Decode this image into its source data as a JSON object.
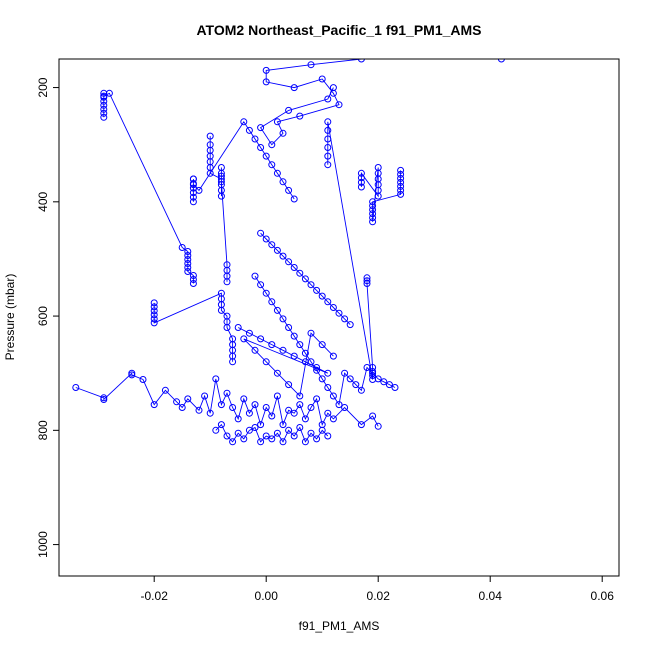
{
  "chart_data": {
    "type": "scatter",
    "title": "ATOM2 Northeast_Pacific_1 f91_PM1_AMS",
    "xlabel": "f91_PM1_AMS",
    "ylabel": "Pressure (mbar)",
    "xlim": [
      -0.037,
      0.063
    ],
    "ylim": [
      1055,
      150
    ],
    "y_reversed": true,
    "x_ticks": [
      -0.02,
      0.0,
      0.02,
      0.04,
      0.06
    ],
    "x_tick_labels": [
      "-0.02",
      "0.00",
      "0.02",
      "0.04",
      "0.06"
    ],
    "y_ticks": [
      200,
      400,
      600,
      800,
      1000
    ],
    "y_tick_labels": [
      "200",
      "400",
      "600",
      "800",
      "1000"
    ],
    "grid": false,
    "color": "#0000ff",
    "series": [
      {
        "x": [
          0.042,
          0.017,
          0.008,
          0.0,
          0.0,
          0.005,
          0.01,
          0.012,
          0.013,
          0.006,
          0.002,
          0.003,
          0.001,
          -0.001,
          0.004,
          0.011,
          0.012
        ],
        "y": [
          150,
          150,
          160,
          170,
          190,
          200,
          185,
          210,
          230,
          250,
          260,
          280,
          300,
          270,
          240,
          220,
          200
        ]
      },
      {
        "x": [
          -0.029,
          -0.029,
          -0.029,
          -0.029,
          -0.029,
          -0.029,
          -0.029,
          -0.029,
          -0.028,
          -0.015,
          -0.014,
          -0.014,
          -0.014,
          -0.014,
          -0.014,
          -0.014,
          -0.013,
          -0.013,
          -0.013
        ],
        "y": [
          210,
          217,
          224,
          231,
          238,
          245,
          252,
          215,
          210,
          480,
          487,
          494,
          501,
          508,
          515,
          522,
          529,
          536,
          543
        ]
      },
      {
        "x": [
          -0.01,
          -0.01,
          -0.01,
          -0.01,
          -0.01,
          -0.01,
          -0.01,
          -0.008,
          -0.008,
          -0.008,
          -0.008,
          -0.008,
          -0.008,
          -0.008,
          -0.008,
          -0.007,
          -0.007,
          -0.007,
          -0.007
        ],
        "y": [
          285,
          300,
          310,
          320,
          330,
          340,
          350,
          360,
          370,
          380,
          390,
          340,
          350,
          355,
          365,
          510,
          520,
          530,
          540
        ]
      },
      {
        "x": [
          -0.013,
          -0.013,
          -0.013,
          -0.013,
          -0.013,
          -0.013,
          -0.013,
          -0.013,
          -0.012,
          -0.004,
          -0.003,
          -0.002,
          -0.001,
          0.0,
          0.001,
          0.002,
          0.003,
          0.004,
          0.005
        ],
        "y": [
          360,
          368,
          376,
          384,
          392,
          400,
          360,
          370,
          380,
          260,
          275,
          290,
          305,
          320,
          335,
          350,
          365,
          380,
          395
        ]
      },
      {
        "x": [
          0.024,
          0.024,
          0.024,
          0.024,
          0.024,
          0.024,
          0.024,
          0.019,
          0.019,
          0.019,
          0.019,
          0.019,
          0.019,
          0.02,
          0.02,
          0.02,
          0.02,
          0.02,
          0.02,
          0.017,
          0.017,
          0.017,
          0.017
        ],
        "y": [
          345,
          352,
          359,
          366,
          373,
          380,
          387,
          400,
          407,
          414,
          421,
          428,
          435,
          340,
          350,
          360,
          370,
          380,
          390,
          350,
          358,
          366,
          374
        ]
      },
      {
        "x": [
          -0.02,
          -0.02,
          -0.02,
          -0.02,
          -0.02,
          -0.02,
          -0.008,
          -0.008,
          -0.008,
          -0.008,
          -0.007,
          -0.007,
          -0.007,
          -0.006,
          -0.006,
          -0.006,
          -0.006,
          -0.006
        ],
        "y": [
          577,
          584,
          591,
          598,
          605,
          612,
          560,
          570,
          580,
          590,
          600,
          610,
          620,
          640,
          650,
          660,
          670,
          680
        ]
      },
      {
        "x": [
          -0.002,
          -0.001,
          0.0,
          0.001,
          0.002,
          0.003,
          0.004,
          0.005,
          0.006,
          0.007,
          0.008,
          0.009,
          0.01,
          0.011,
          0.012,
          0.013,
          0.014,
          0.015,
          0.016,
          0.017,
          0.018,
          0.019,
          0.02,
          0.021,
          0.022,
          0.023
        ],
        "y": [
          530,
          545,
          560,
          575,
          590,
          605,
          620,
          635,
          650,
          665,
          680,
          695,
          710,
          725,
          740,
          755,
          700,
          710,
          720,
          730,
          690,
          700,
          710,
          715,
          720,
          725
        ]
      },
      {
        "x": [
          -0.034,
          -0.029,
          -0.029,
          -0.024,
          -0.024,
          -0.022,
          -0.02,
          -0.018,
          -0.016,
          -0.015,
          -0.014,
          -0.012,
          -0.011,
          -0.01,
          -0.009,
          -0.008,
          -0.007,
          -0.006,
          -0.005,
          -0.004,
          -0.003,
          -0.002,
          -0.001,
          0.0,
          0.001,
          0.002,
          0.003,
          0.004,
          0.005,
          0.006,
          0.007,
          0.008,
          0.009,
          0.01,
          0.011,
          0.012,
          0.014,
          0.017,
          0.019,
          0.02
        ],
        "y": [
          725,
          743,
          746,
          700,
          703,
          711,
          755,
          730,
          750,
          760,
          745,
          765,
          740,
          770,
          710,
          755,
          735,
          760,
          780,
          745,
          770,
          755,
          790,
          760,
          775,
          740,
          790,
          765,
          770,
          755,
          780,
          760,
          745,
          790,
          770,
          780,
          760,
          790,
          775,
          793
        ]
      },
      {
        "x": [
          -0.009,
          -0.008,
          -0.007,
          -0.006,
          -0.005,
          -0.004,
          -0.003,
          -0.002,
          -0.001,
          0.0,
          0.001,
          0.002,
          0.003,
          0.004,
          0.005,
          0.006,
          0.007,
          0.008,
          0.009,
          0.01,
          0.011
        ],
        "y": [
          800,
          790,
          810,
          820,
          805,
          815,
          800,
          795,
          820,
          810,
          815,
          805,
          820,
          800,
          810,
          795,
          820,
          805,
          815,
          800,
          810
        ]
      },
      {
        "x": [
          -0.005,
          -0.003,
          -0.001,
          0.001,
          0.003,
          0.005,
          0.007,
          0.009,
          0.011,
          -0.004,
          -0.002,
          0.0,
          0.002,
          0.004,
          0.006,
          0.008,
          0.01,
          0.012
        ],
        "y": [
          620,
          630,
          640,
          650,
          660,
          670,
          680,
          690,
          700,
          640,
          660,
          680,
          700,
          720,
          740,
          630,
          650,
          670
        ]
      },
      {
        "x": [
          0.018,
          0.018,
          0.018,
          0.019,
          0.019,
          0.019,
          0.019,
          0.011,
          0.011,
          0.011,
          0.011,
          0.011,
          0.011
        ],
        "y": [
          533,
          538,
          543,
          690,
          697,
          704,
          711,
          260,
          275,
          290,
          305,
          320,
          335
        ]
      },
      {
        "x": [
          -0.001,
          0.0,
          0.001,
          0.002,
          0.003,
          0.004,
          0.005,
          0.006,
          0.007,
          0.008,
          0.009,
          0.01,
          0.011,
          0.012,
          0.013,
          0.014,
          0.015
        ],
        "y": [
          455,
          465,
          475,
          485,
          495,
          505,
          515,
          525,
          535,
          545,
          555,
          565,
          575,
          585,
          595,
          605,
          615
        ]
      }
    ]
  }
}
